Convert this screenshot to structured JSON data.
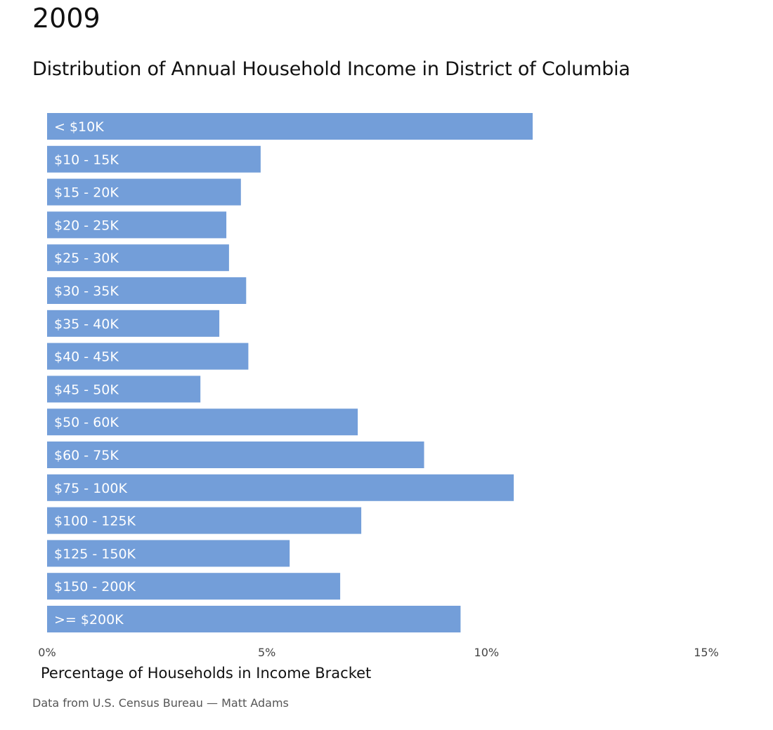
{
  "header": {
    "year": "2009",
    "subtitle": "Distribution of Annual Household Income in District of Columbia"
  },
  "footer": {
    "source": "Data from U.S. Census Bureau — Matt Adams"
  },
  "colors": {
    "bar": "#739ed9",
    "bar_label": "#ffffff",
    "tick_label": "#444444"
  },
  "chart_data": {
    "type": "bar",
    "orientation": "horizontal",
    "title": "Distribution of Annual Household Income in District of Columbia",
    "xlabel": "Percentage of Households in Income Bracket",
    "ylabel": "",
    "xlim": [
      0,
      15
    ],
    "xticks": [
      0,
      5,
      10,
      15
    ],
    "xtick_labels": [
      "0%",
      "5%",
      "10%",
      "15%"
    ],
    "grid": false,
    "categories": [
      "< $10K",
      "$10 - 15K",
      "$15 - 20K",
      "$20 - 25K",
      "$25 - 30K",
      "$30 - 35K",
      "$35 - 40K",
      "$40 - 45K",
      "$45 - 50K",
      "$50 - 60K",
      "$60 - 75K",
      "$75 - 100K",
      "$100 - 125K",
      "$125 - 150K",
      "$150 - 200K",
      ">= $200K"
    ],
    "values": [
      11.05,
      4.86,
      4.41,
      4.08,
      4.14,
      4.53,
      3.92,
      4.58,
      3.49,
      7.07,
      8.58,
      10.62,
      7.15,
      5.52,
      6.67,
      9.41
    ]
  }
}
